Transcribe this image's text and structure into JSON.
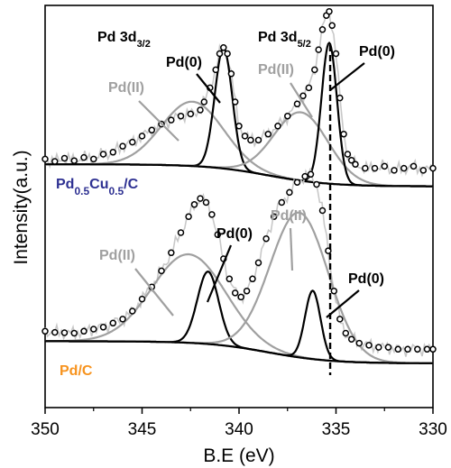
{
  "chart_data": {
    "type": "line",
    "xlabel": "B.E (eV)",
    "ylabel": "Intensity(a.u.)",
    "xlim": [
      350,
      330
    ],
    "x_reversed": true,
    "ylim": [
      0,
      10
    ],
    "x_ticks": [
      350,
      345,
      340,
      335,
      330
    ],
    "x_tick_labels": [
      "350",
      "345",
      "340",
      "335",
      "330"
    ],
    "grid": false,
    "reference_line": {
      "x": 335.3,
      "style": "dashed",
      "color": "#000000"
    },
    "panels": [
      {
        "name": "Pd0.5Cu0.5/C",
        "label_parts": [
          {
            "text": "Pd",
            "sub": false
          },
          {
            "text": "0.5",
            "sub": true
          },
          {
            "text": "Cu",
            "sub": false
          },
          {
            "text": "0.5",
            "sub": true
          },
          {
            "text": "/C",
            "sub": false
          }
        ],
        "label_color": "#2e3192",
        "background_level": 5.5,
        "experimental_points": [
          [
            350.0,
            6.18
          ],
          [
            349.5,
            6.12
          ],
          [
            349.0,
            6.2
          ],
          [
            348.5,
            6.14
          ],
          [
            348.0,
            6.22
          ],
          [
            347.5,
            6.18
          ],
          [
            347.0,
            6.3
          ],
          [
            346.5,
            6.35
          ],
          [
            346.0,
            6.5
          ],
          [
            345.5,
            6.6
          ],
          [
            345.0,
            6.75
          ],
          [
            344.5,
            6.9
          ],
          [
            344.0,
            7.05
          ],
          [
            343.5,
            7.15
          ],
          [
            343.0,
            7.25
          ],
          [
            342.5,
            7.3
          ],
          [
            342.0,
            7.4
          ],
          [
            341.8,
            7.6
          ],
          [
            341.5,
            7.95
          ],
          [
            341.2,
            8.4
          ],
          [
            341.0,
            8.8
          ],
          [
            340.8,
            8.95
          ],
          [
            340.6,
            8.8
          ],
          [
            340.4,
            8.3
          ],
          [
            340.2,
            7.6
          ],
          [
            340.0,
            7.0
          ],
          [
            339.7,
            6.75
          ],
          [
            339.4,
            6.65
          ],
          [
            339.0,
            6.65
          ],
          [
            338.5,
            6.8
          ],
          [
            338.0,
            7.0
          ],
          [
            337.5,
            7.25
          ],
          [
            337.0,
            7.55
          ],
          [
            336.7,
            7.75
          ],
          [
            336.4,
            7.95
          ],
          [
            336.1,
            8.4
          ],
          [
            335.9,
            8.9
          ],
          [
            335.7,
            9.4
          ],
          [
            335.5,
            9.75
          ],
          [
            335.35,
            9.85
          ],
          [
            335.2,
            9.5
          ],
          [
            335.0,
            8.8
          ],
          [
            334.8,
            7.7
          ],
          [
            334.6,
            6.8
          ],
          [
            334.4,
            6.3
          ],
          [
            334.2,
            6.15
          ],
          [
            334.0,
            6.05
          ],
          [
            333.5,
            5.95
          ],
          [
            333.0,
            5.95
          ],
          [
            332.5,
            6.0
          ],
          [
            332.0,
            5.9
          ],
          [
            331.5,
            5.95
          ],
          [
            331.0,
            6.0
          ],
          [
            330.5,
            5.9
          ],
          [
            330.0,
            5.95
          ]
        ],
        "components": [
          {
            "label": "Pd(II)",
            "center": 342.4,
            "height": 1.6,
            "width": 1.6
          },
          {
            "label": "Pd(0)",
            "center": 340.8,
            "height": 3.0,
            "width": 0.45
          },
          {
            "label": "Pd(II)",
            "center": 336.8,
            "height": 1.7,
            "width": 1.4
          },
          {
            "label": "Pd(0)",
            "center": 335.35,
            "height": 3.5,
            "width": 0.4
          }
        ]
      },
      {
        "name": "Pd/C",
        "label_parts": [
          {
            "text": "Pd/C",
            "sub": false
          }
        ],
        "label_color": "#f7931e",
        "background_level": 1.1,
        "experimental_points": [
          [
            350.0,
            1.9
          ],
          [
            349.5,
            1.87
          ],
          [
            349.0,
            1.86
          ],
          [
            348.5,
            1.85
          ],
          [
            348.0,
            1.9
          ],
          [
            347.5,
            1.95
          ],
          [
            347.0,
            2.0
          ],
          [
            346.5,
            2.1
          ],
          [
            346.0,
            2.2
          ],
          [
            345.5,
            2.4
          ],
          [
            345.0,
            2.7
          ],
          [
            344.5,
            3.0
          ],
          [
            344.0,
            3.4
          ],
          [
            343.5,
            3.85
          ],
          [
            343.0,
            4.35
          ],
          [
            342.6,
            4.75
          ],
          [
            342.3,
            5.05
          ],
          [
            342.0,
            5.2
          ],
          [
            341.7,
            5.1
          ],
          [
            341.4,
            4.8
          ],
          [
            341.1,
            4.3
          ],
          [
            340.8,
            3.7
          ],
          [
            340.5,
            3.2
          ],
          [
            340.2,
            2.85
          ],
          [
            339.9,
            2.75
          ],
          [
            339.6,
            2.9
          ],
          [
            339.3,
            3.2
          ],
          [
            339.0,
            3.6
          ],
          [
            338.6,
            4.2
          ],
          [
            338.2,
            4.75
          ],
          [
            337.8,
            5.1
          ],
          [
            337.4,
            5.35
          ],
          [
            337.0,
            5.6
          ],
          [
            336.6,
            5.75
          ],
          [
            336.3,
            5.8
          ],
          [
            336.0,
            5.55
          ],
          [
            335.7,
            4.9
          ],
          [
            335.4,
            3.9
          ],
          [
            335.1,
            2.9
          ],
          [
            334.8,
            2.2
          ],
          [
            334.5,
            1.85
          ],
          [
            334.2,
            1.7
          ],
          [
            333.8,
            1.6
          ],
          [
            333.3,
            1.55
          ],
          [
            332.8,
            1.5
          ],
          [
            332.3,
            1.5
          ],
          [
            331.8,
            1.45
          ],
          [
            331.3,
            1.45
          ],
          [
            330.8,
            1.45
          ],
          [
            330.3,
            1.45
          ],
          [
            330.0,
            1.45
          ]
        ],
        "components": [
          {
            "label": "Pd(II)",
            "center": 342.6,
            "height": 2.2,
            "width": 1.9
          },
          {
            "label": "Pd(0)",
            "center": 341.6,
            "height": 1.8,
            "width": 0.55
          },
          {
            "label": "Pd(II)",
            "center": 336.9,
            "height": 3.6,
            "width": 1.5
          },
          {
            "label": "Pd(0)",
            "center": 336.2,
            "height": 1.7,
            "width": 0.4
          }
        ]
      }
    ],
    "annotations": [
      {
        "id": "pd3d32",
        "base": "Pd 3d",
        "sub": "3/2",
        "color": "#000000"
      },
      {
        "id": "pd3d52",
        "base": "Pd 3d",
        "sub": "5/2",
        "color": "#000000"
      },
      {
        "id": "top-pd0-left",
        "text": "Pd(0)",
        "color": "#000000"
      },
      {
        "id": "top-pdii-left",
        "text": "Pd(II)",
        "color": "#a0a0a0"
      },
      {
        "id": "top-pdii-right",
        "text": "Pd(II)",
        "color": "#a0a0a0"
      },
      {
        "id": "top-pd0-right",
        "text": "Pd(0)",
        "color": "#000000"
      },
      {
        "id": "bot-pdii-left",
        "text": "Pd(II)",
        "color": "#a0a0a0"
      },
      {
        "id": "bot-pd0-left",
        "text": "Pd(0)",
        "color": "#000000"
      },
      {
        "id": "bot-pdii-right",
        "text": "Pd(II)",
        "color": "#a0a0a0"
      },
      {
        "id": "bot-pd0-right",
        "text": "Pd(0)",
        "color": "#000000"
      }
    ],
    "colors": {
      "component_pd0": "#000000",
      "component_pdii": "#a0a0a0",
      "background": "#a0a0a0",
      "raw_noise": "#c8c8c8",
      "marker_stroke": "#000000",
      "marker_fill": "#ffffff"
    }
  }
}
